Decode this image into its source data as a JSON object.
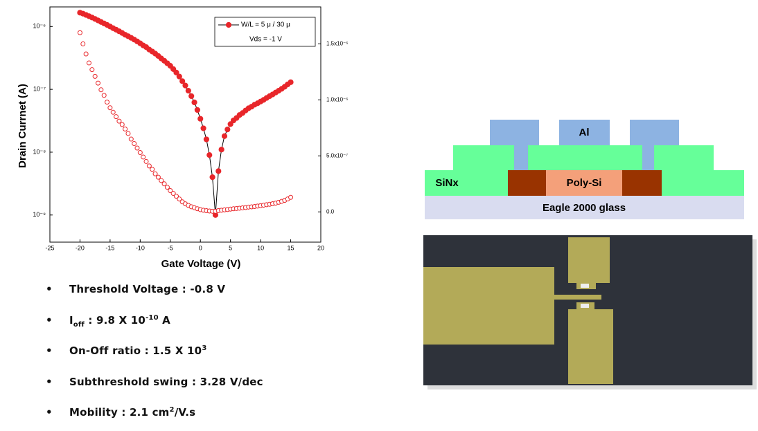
{
  "chart_data": {
    "type": "scatter",
    "xlabel": "Gate Voltage (V)",
    "ylabel": "Drain Currnet (A)",
    "x": [
      -20,
      -19.5,
      -19,
      -18.5,
      -18,
      -17.5,
      -17,
      -16.5,
      -16,
      -15.5,
      -15,
      -14.5,
      -14,
      -13.5,
      -13,
      -12.5,
      -12,
      -11.5,
      -11,
      -10.5,
      -10,
      -9.5,
      -9,
      -8.5,
      -8,
      -7.5,
      -7,
      -6.5,
      -6,
      -5.5,
      -5,
      -4.5,
      -4,
      -3.5,
      -3,
      -2.5,
      -2,
      -1.5,
      -1,
      -0.5,
      0,
      0.5,
      1,
      1.5,
      2,
      2.5,
      3,
      3.5,
      4,
      4.5,
      5,
      5.5,
      6,
      6.5,
      7,
      7.5,
      8,
      8.5,
      9,
      9.5,
      10,
      10.5,
      11,
      11.5,
      12,
      12.5,
      13,
      13.5,
      14,
      14.5,
      15
    ],
    "series": [
      {
        "name": "W/L = 5 μ / 30 μ",
        "color": "#e8262a",
        "marker": "filled",
        "line": true,
        "axis": "y",
        "values": [
          1.66e-06,
          1.6e-06,
          1.53e-06,
          1.46e-06,
          1.39e-06,
          1.32e-06,
          1.25e-06,
          1.18e-06,
          1.12e-06,
          1.06e-06,
          1e-06,
          9.4e-07,
          8.9e-07,
          8.4e-07,
          7.9e-07,
          7.4e-07,
          7e-07,
          6.6e-07,
          6.2e-07,
          5.8e-07,
          5.4e-07,
          5e-07,
          4.7e-07,
          4.3e-07,
          4e-07,
          3.7e-07,
          3.4e-07,
          3.1e-07,
          2.85e-07,
          2.6e-07,
          2.37e-07,
          2.1e-07,
          1.85e-07,
          1.6e-07,
          1.35e-07,
          1.15e-07,
          9.5e-08,
          7.8e-08,
          6.2e-08,
          4.7e-08,
          3.4e-08,
          2.4e-08,
          1.6e-08,
          9e-09,
          4e-09,
          1e-09,
          5e-09,
          1.1e-08,
          1.8e-08,
          2.3e-08,
          2.8e-08,
          3.2e-08,
          3.5e-08,
          3.9e-08,
          4.2e-08,
          4.6e-08,
          5e-08,
          5.3e-08,
          5.7e-08,
          6e-08,
          6.4e-08,
          6.8e-08,
          7.3e-08,
          7.8e-08,
          8.3e-08,
          8.9e-08,
          9.5e-08,
          1.02e-07,
          1.1e-07,
          1.2e-07,
          1.3e-07
        ]
      },
      {
        "color": "#e8262a",
        "marker": "open",
        "line": false,
        "axis": "y2",
        "values": [
          1.6e-06,
          1.5e-06,
          1.41e-06,
          1.33e-06,
          1.27e-06,
          1.21e-06,
          1.15e-06,
          1.09e-06,
          1.04e-06,
          9.8e-07,
          9.3e-07,
          8.9e-07,
          8.5e-07,
          8.1e-07,
          7.8e-07,
          7.4e-07,
          7e-07,
          6.5e-07,
          6.1e-07,
          5.7e-07,
          5.3e-07,
          4.9e-07,
          4.5e-07,
          4.1e-07,
          3.8e-07,
          3.4e-07,
          3.1e-07,
          2.8e-07,
          2.5e-07,
          2.2e-07,
          1.9e-07,
          1.65e-07,
          1.4e-07,
          1.15e-07,
          9e-08,
          7.2e-08,
          5.8e-08,
          4.6e-08,
          3.7e-08,
          2.8e-08,
          2e-08,
          1.5e-08,
          1.1e-08,
          8e-09,
          6e-09,
          6e-09,
          1.2e-08,
          1.5e-08,
          1.8e-08,
          2.1e-08,
          2.5e-08,
          2.8e-08,
          3e-08,
          3.3e-08,
          3.6e-08,
          3.9e-08,
          4.3e-08,
          4.5e-08,
          4.8e-08,
          5.2e-08,
          5.6e-08,
          6e-08,
          6.4e-08,
          6.8e-08,
          7.3e-08,
          7.8e-08,
          8.6e-08,
          9.4e-08,
          1.03e-07,
          1.15e-07,
          1.3e-07
        ]
      }
    ],
    "legend_note": "Vds = -1 V",
    "legend": "upper right",
    "xlim": [
      -25,
      20
    ],
    "xticks": [
      -25,
      -20,
      -15,
      -10,
      -5,
      0,
      5,
      10,
      15,
      20
    ],
    "ylim": [
      3.7e-10,
      2.05e-06
    ],
    "yscale": "log",
    "yticks": [
      {
        "value": 1e-09,
        "label": "10⁻⁹"
      },
      {
        "value": 1e-08,
        "label": "10⁻⁸"
      },
      {
        "value": 1e-07,
        "label": "10⁻⁷"
      },
      {
        "value": 1e-06,
        "label": "10⁻⁶"
      }
    ],
    "y2lim": [
      -2.7e-07,
      1.83e-06
    ],
    "y2ticks": [
      {
        "value": 0,
        "label": "0.0"
      },
      {
        "value": 5e-07,
        "label": "5.0x10⁻⁷"
      },
      {
        "value": 1e-06,
        "label": "1.0x10⁻⁶"
      },
      {
        "value": 1.5e-06,
        "label": "1.5x10⁻⁶"
      }
    ]
  },
  "bullets": [
    [
      "Threshold Voltage : -0.8 V"
    ],
    [
      "I",
      "off",
      " : 9.8 X 10",
      "-10",
      " A"
    ],
    [
      "On-Off ratio : 1.5 X 10",
      "3"
    ],
    [
      "Subthreshold swing : 3.28 V/dec"
    ],
    [
      "Mobility : 2.1 cm",
      "2",
      "/V.s"
    ]
  ],
  "diagram": {
    "metal": "Al",
    "insulator": "SiNx",
    "channel": "Poly-Si",
    "substrate": "Eagle 2000 glass"
  }
}
